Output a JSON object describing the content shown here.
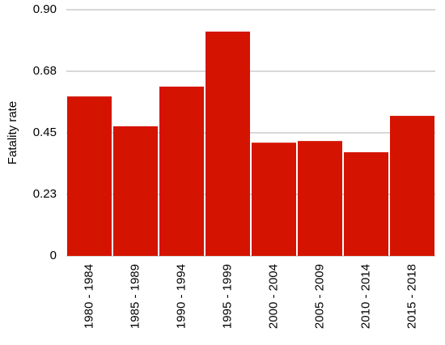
{
  "chart_data": {
    "type": "bar",
    "y_label": "Fatality rate",
    "categories": [
      "1980 - 1984",
      "1985 - 1989",
      "1990 - 1994",
      "1995 - 1999",
      "2000 - 2004",
      "2005 - 2009",
      "2010 - 2014",
      "2015 - 2018"
    ],
    "values": [
      0.583,
      0.474,
      0.619,
      0.82,
      0.414,
      0.42,
      0.379,
      0.512
    ],
    "color": "#d41400",
    "ylim": [
      0,
      0.9
    ],
    "yticks": [
      0,
      {
        "value": 0.225,
        "label": "0.23"
      },
      0.45,
      {
        "value": 0.675,
        "label": "0.68"
      },
      {
        "value": 0.9,
        "label": "0.90"
      }
    ],
    "grid": true
  }
}
